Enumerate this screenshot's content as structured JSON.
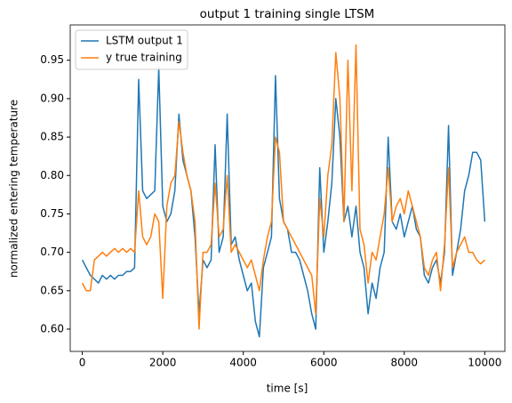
{
  "chart_data": {
    "type": "line",
    "title": "output 1 training single LTSM",
    "x_label": "time [s]",
    "y_label": "normalized entering temperature",
    "x": [
      0,
      100,
      200,
      300,
      400,
      500,
      600,
      700,
      800,
      900,
      1000,
      1100,
      1200,
      1300,
      1400,
      1500,
      1600,
      1700,
      1800,
      1900,
      2000,
      2100,
      2200,
      2300,
      2400,
      2500,
      2600,
      2700,
      2800,
      2900,
      3000,
      3100,
      3200,
      3300,
      3400,
      3500,
      3600,
      3700,
      3800,
      3900,
      4000,
      4100,
      4200,
      4300,
      4400,
      4500,
      4600,
      4700,
      4800,
      4900,
      5000,
      5100,
      5200,
      5300,
      5400,
      5500,
      5600,
      5700,
      5800,
      5900,
      6000,
      6100,
      6200,
      6300,
      6400,
      6500,
      6600,
      6700,
      6800,
      6900,
      7000,
      7100,
      7200,
      7300,
      7400,
      7500,
      7600,
      7700,
      7800,
      7900,
      8000,
      8100,
      8200,
      8300,
      8400,
      8500,
      8600,
      8700,
      8800,
      8900,
      9000,
      9100,
      9200,
      9300,
      9400,
      9500,
      9600,
      9700,
      9800,
      9900,
      10000
    ],
    "series": [
      {
        "name": "LSTM output 1",
        "color": "#1f77b4",
        "values": [
          0.69,
          0.68,
          0.67,
          0.665,
          0.66,
          0.67,
          0.665,
          0.67,
          0.665,
          0.67,
          0.67,
          0.675,
          0.675,
          0.68,
          0.925,
          0.78,
          0.77,
          0.775,
          0.78,
          0.94,
          0.76,
          0.74,
          0.75,
          0.78,
          0.88,
          0.82,
          0.8,
          0.78,
          0.72,
          0.62,
          0.69,
          0.68,
          0.69,
          0.84,
          0.7,
          0.72,
          0.88,
          0.71,
          0.72,
          0.69,
          0.67,
          0.65,
          0.66,
          0.61,
          0.59,
          0.68,
          0.7,
          0.72,
          0.93,
          0.77,
          0.74,
          0.73,
          0.7,
          0.7,
          0.69,
          0.67,
          0.65,
          0.62,
          0.6,
          0.81,
          0.7,
          0.74,
          0.79,
          0.9,
          0.85,
          0.74,
          0.76,
          0.72,
          0.76,
          0.7,
          0.68,
          0.62,
          0.66,
          0.64,
          0.68,
          0.7,
          0.85,
          0.74,
          0.73,
          0.75,
          0.72,
          0.74,
          0.76,
          0.73,
          0.72,
          0.67,
          0.66,
          0.68,
          0.69,
          0.66,
          0.7,
          0.865,
          0.67,
          0.7,
          0.73,
          0.78,
          0.8,
          0.83,
          0.83,
          0.82,
          0.74
        ]
      },
      {
        "name": "y true training",
        "color": "#ff7f0e",
        "values": [
          0.66,
          0.65,
          0.65,
          0.69,
          0.695,
          0.7,
          0.695,
          0.7,
          0.705,
          0.7,
          0.705,
          0.7,
          0.705,
          0.7,
          0.78,
          0.72,
          0.71,
          0.72,
          0.75,
          0.74,
          0.64,
          0.76,
          0.79,
          0.8,
          0.87,
          0.83,
          0.8,
          0.78,
          0.74,
          0.6,
          0.7,
          0.7,
          0.71,
          0.79,
          0.72,
          0.73,
          0.8,
          0.7,
          0.71,
          0.7,
          0.69,
          0.68,
          0.69,
          0.67,
          0.65,
          0.69,
          0.72,
          0.74,
          0.85,
          0.83,
          0.74,
          0.73,
          0.72,
          0.71,
          0.7,
          0.69,
          0.68,
          0.67,
          0.62,
          0.77,
          0.72,
          0.8,
          0.84,
          0.96,
          0.9,
          0.74,
          0.95,
          0.78,
          0.97,
          0.73,
          0.71,
          0.66,
          0.7,
          0.69,
          0.72,
          0.75,
          0.81,
          0.74,
          0.76,
          0.77,
          0.75,
          0.78,
          0.76,
          0.74,
          0.72,
          0.68,
          0.67,
          0.69,
          0.7,
          0.65,
          0.71,
          0.81,
          0.68,
          0.7,
          0.71,
          0.72,
          0.7,
          0.7,
          0.69,
          0.685,
          0.69
        ]
      }
    ],
    "xlim": [
      -300,
      10500
    ],
    "ylim": [
      0.571,
      0.996
    ],
    "xticks": [
      0,
      2000,
      4000,
      6000,
      8000,
      10000
    ],
    "yticks": [
      {
        "value": 0.6,
        "label": "0.60"
      },
      0.65,
      {
        "value": 0.7,
        "label": "0.70"
      },
      0.75,
      {
        "value": 0.8,
        "label": "0.80"
      },
      0.85,
      {
        "value": 0.9,
        "label": "0.90"
      },
      0.95
    ],
    "grid": false,
    "legend": "upper left"
  }
}
